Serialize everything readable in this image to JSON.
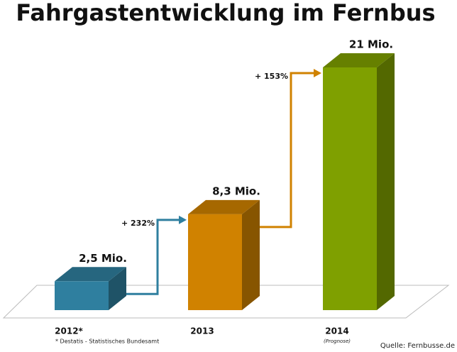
{
  "chart_data": {
    "type": "bar3d",
    "title": "Fahrgastentwicklung im Fernbus",
    "categories": [
      "2012*",
      "2013",
      "2014"
    ],
    "values": [
      2.5,
      8.3,
      21
    ],
    "value_labels": [
      "2,5 Mio.",
      "8,3 Mio.",
      "21 Mio."
    ],
    "colors": [
      "#2f7f9f",
      "#d08200",
      "#7fa000"
    ],
    "annotations": [
      "+ 232%",
      "+ 153%"
    ],
    "category_note": "(Prognose)",
    "footnote": "* Destatis - Statistisches Bundesamt",
    "source": "Quelle: Fernbusse.de"
  }
}
